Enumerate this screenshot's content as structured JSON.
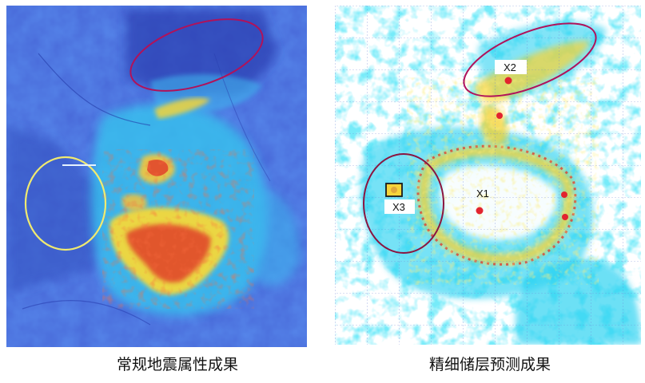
{
  "left_panel": {
    "caption": "常规地震属性成果",
    "colors": {
      "background": "#3f5fd0",
      "mid": "#2fa6e8",
      "cyan": "#33d6f0",
      "yellow": "#f8e23a",
      "red": "#e03020"
    }
  },
  "right_panel": {
    "caption": "精细储层预测成果",
    "wells": [
      {
        "label": "X1"
      },
      {
        "label": "X2"
      },
      {
        "label": "X3"
      }
    ],
    "colors": {
      "background": "#ffffff",
      "cyan": "#2ed3f2",
      "yellow": "#f8e23a",
      "red": "#e03020",
      "ellipse": "#b0125a",
      "grid": "#6d83d6"
    }
  }
}
